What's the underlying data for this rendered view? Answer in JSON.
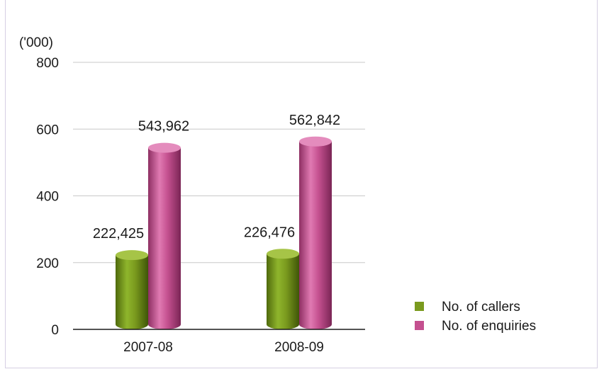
{
  "chart_data": {
    "type": "bar",
    "unit_label": "('000)",
    "categories": [
      "2007-08",
      "2008-09"
    ],
    "series": [
      {
        "name": "No. of callers",
        "values": [
          222.425,
          226.476
        ],
        "labels": [
          "222,425",
          "226,476"
        ],
        "color": "#7a9a1e"
      },
      {
        "name": "No. of enquiries",
        "values": [
          543.962,
          562.842
        ],
        "labels": [
          "543,962",
          "562,842"
        ],
        "color": "#c4508f"
      }
    ],
    "y_ticks": [
      0,
      200,
      400,
      600,
      800
    ],
    "ylim": [
      0,
      800
    ],
    "grid": true,
    "legend_position": "bottom-right",
    "bar_style": "3d-cylinder"
  }
}
